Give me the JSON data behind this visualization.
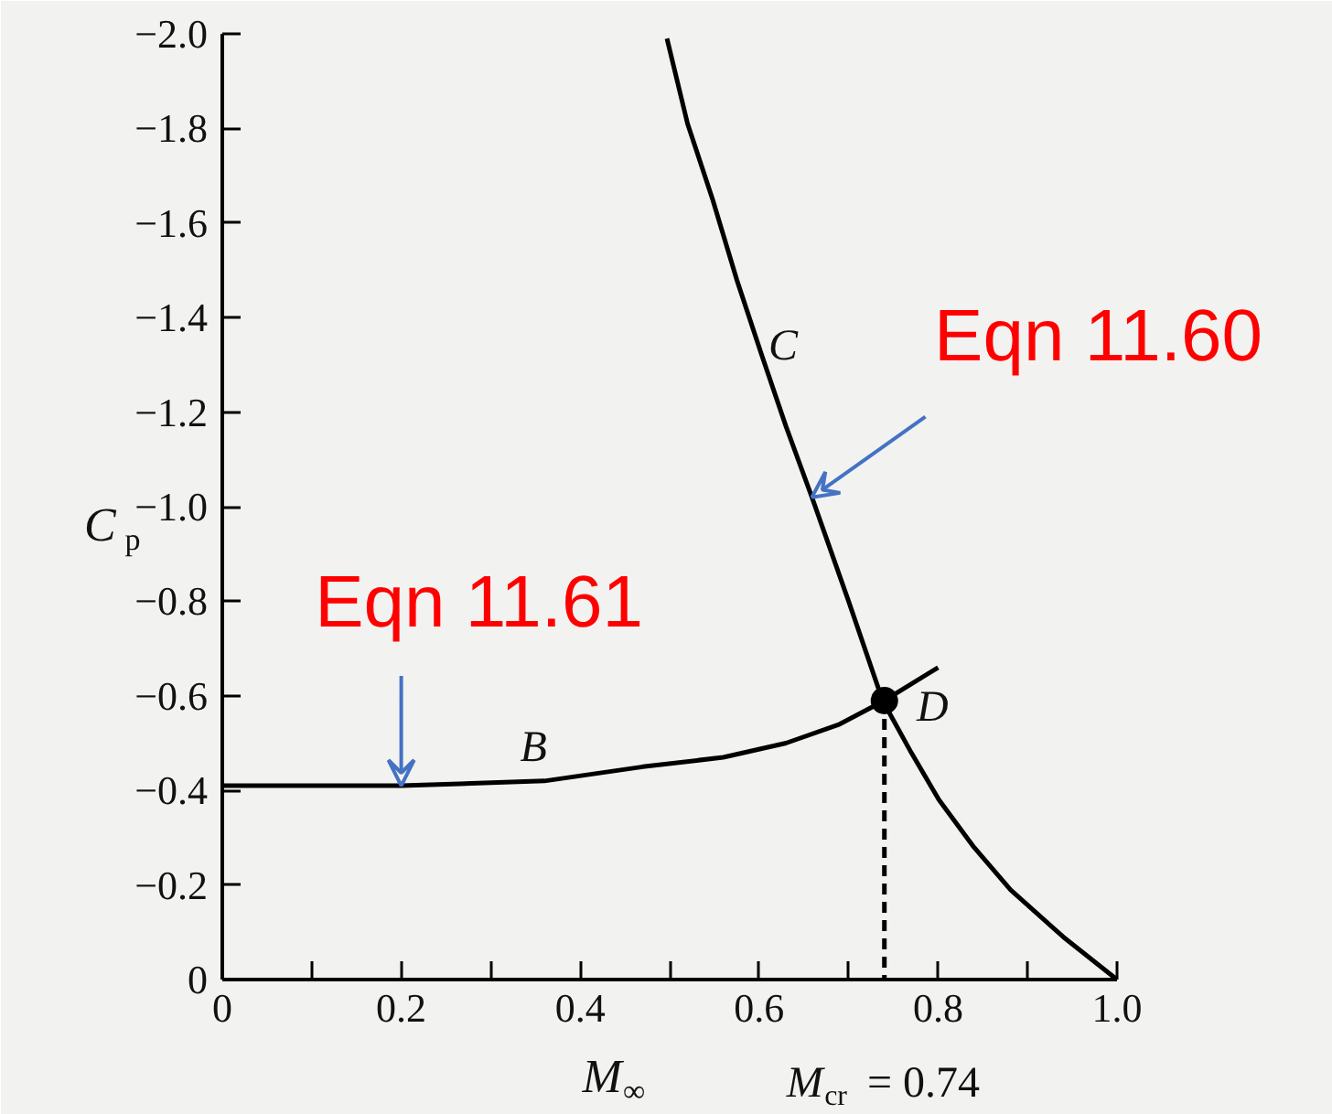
{
  "chart_data": {
    "type": "line",
    "xlabel": "M$_{∞}$",
    "ylabel": "C$_{p}$",
    "xlim": [
      0,
      1.0
    ],
    "ylim": [
      0,
      -2.0
    ],
    "xticks": [
      0,
      {
        "value": 0.1,
        "label": null
      },
      0.2,
      {
        "value": 0.3,
        "label": null
      },
      0.4,
      {
        "value": 0.5,
        "label": null
      },
      0.6,
      {
        "value": 0.7,
        "label": null
      },
      0.8,
      {
        "value": 0.9,
        "label": null
      },
      {
        "value": 1.0,
        "label": "1.0"
      }
    ],
    "yticks": [
      0,
      {
        "value": -0.2,
        "label": "−0.2"
      },
      {
        "value": -0.4,
        "label": "−0.4"
      },
      {
        "value": -0.6,
        "label": "−0.6"
      },
      {
        "value": -0.8,
        "label": "−0.8"
      },
      {
        "value": -1.0,
        "label": "−1.0"
      },
      {
        "value": -1.2,
        "label": "−1.2"
      },
      {
        "value": -1.4,
        "label": "−1.4"
      },
      {
        "value": -1.6,
        "label": "−1.6"
      },
      {
        "value": -1.8,
        "label": "−1.8"
      },
      {
        "value": -2.0,
        "label": "−2.0"
      }
    ],
    "grid": false,
    "line_style": "solid",
    "marker": "none",
    "series": [
      {
        "color": "#000000",
        "x": [
          0.497,
          0.52,
          0.548,
          0.575,
          0.603,
          0.63,
          0.659,
          0.7,
          0.738,
          0.77,
          0.801,
          0.84,
          0.881,
          0.94,
          1.0
        ],
        "values": [
          -1.99,
          -1.81,
          -1.65,
          -1.48,
          -1.32,
          -1.17,
          -1.02,
          -0.8,
          -0.59,
          -0.48,
          -0.38,
          -0.28,
          -0.19,
          -0.09,
          0
        ]
      },
      {
        "color": "#000000",
        "x": [
          0,
          0.1,
          0.2,
          0.36,
          0.47,
          0.56,
          0.63,
          0.69,
          0.74,
          0.8
        ],
        "values": [
          -0.41,
          -0.41,
          -0.41,
          -0.42,
          -0.45,
          -0.47,
          -0.5,
          -0.54,
          -0.59,
          -0.66
        ]
      },
      {
        "color": "#000000",
        "type": "line",
        "line_style": "dashed",
        "x": [
          0.74,
          0.74
        ],
        "values": [
          -0.59,
          0
        ]
      },
      {
        "color": "#000000",
        "type": "scatter",
        "marker": "circle",
        "x": [
          0.74
        ],
        "values": [
          -0.59
        ]
      }
    ],
    "annotations": [
      {
        "text": "Eqn 11.60",
        "x": 0.659,
        "y": -1.02
      },
      {
        "text": "Eqn 11.61",
        "x": 0.2,
        "y": -0.41
      },
      {
        "text": "C",
        "x": 0.603,
        "y": -1.32
      },
      {
        "text": "B",
        "x": 0.354,
        "y": -0.42
      },
      {
        "text": "D",
        "x": 0.74,
        "y": -0.59
      },
      {
        "text": "M$_{cr}$ = 0.74",
        "x": 0.74,
        "y": 0
      }
    ]
  }
}
